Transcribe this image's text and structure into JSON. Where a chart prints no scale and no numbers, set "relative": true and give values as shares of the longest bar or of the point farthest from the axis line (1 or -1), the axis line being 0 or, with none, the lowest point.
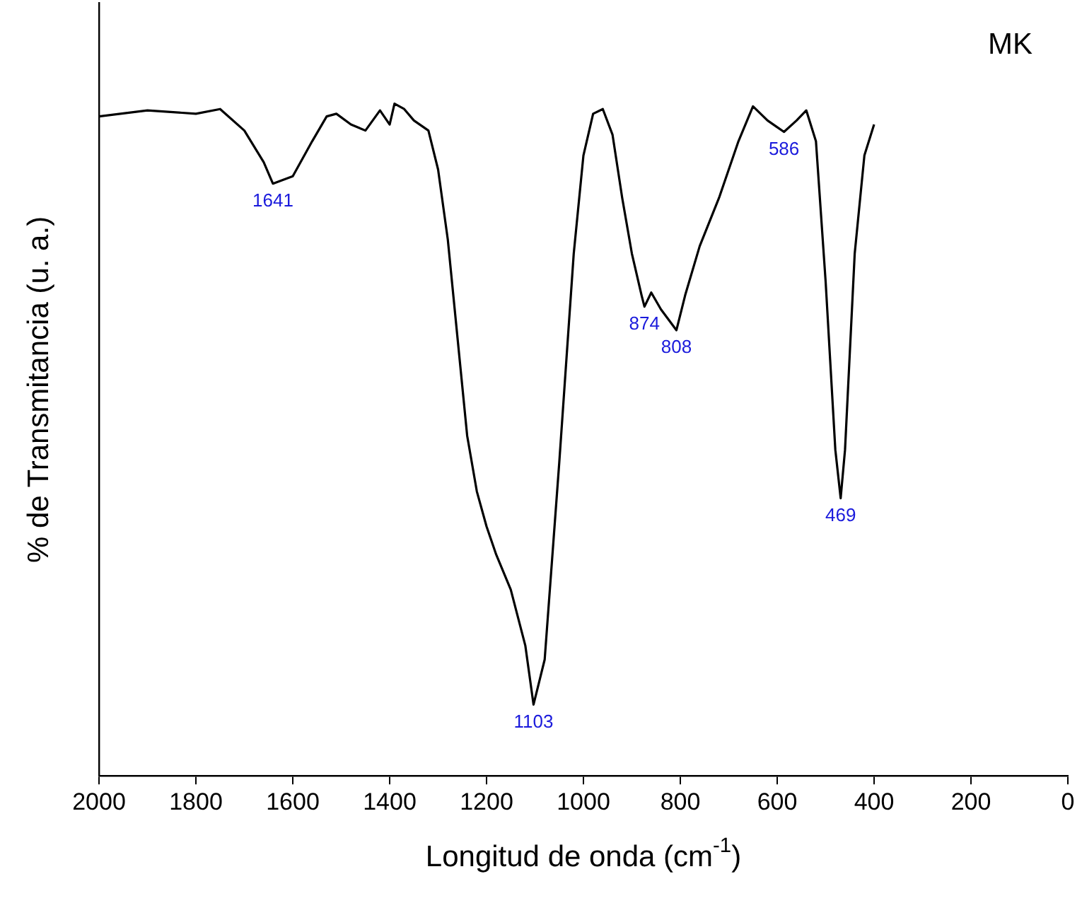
{
  "chart_data": {
    "type": "line",
    "xlabel": "Longitud de onda (cm$^{-1}$)",
    "ylabel": "% de Transmitancia (u. a.)",
    "relative": true,
    "xlim": [
      2000,
      0
    ],
    "xticks": [
      2000,
      1800,
      1600,
      1400,
      1200,
      1000,
      800,
      600,
      400,
      200,
      0
    ],
    "grid": false,
    "marker": "none",
    "legend": "top right",
    "series": [
      {
        "name": "MK",
        "color": "#000000",
        "x": [
          2000,
          1900,
          1800,
          1750,
          1700,
          1660,
          1641,
          1600,
          1560,
          1530,
          1510,
          1480,
          1450,
          1420,
          1400,
          1390,
          1370,
          1350,
          1320,
          1300,
          1280,
          1260,
          1240,
          1220,
          1200,
          1180,
          1150,
          1120,
          1103,
          1080,
          1050,
          1020,
          1000,
          980,
          960,
          940,
          920,
          900,
          880,
          874,
          860,
          840,
          808,
          790,
          760,
          720,
          680,
          650,
          620,
          600,
          586,
          560,
          540,
          520,
          500,
          480,
          469,
          460,
          440,
          420,
          400
        ],
        "values": [
          0.981,
          0.99,
          0.985,
          0.992,
          0.96,
          0.913,
          0.881,
          0.892,
          0.944,
          0.981,
          0.985,
          0.969,
          0.96,
          0.99,
          0.969,
          1,
          0.992,
          0.975,
          0.96,
          0.902,
          0.798,
          0.652,
          0.506,
          0.423,
          0.371,
          0.329,
          0.277,
          0.194,
          0.106,
          0.173,
          0.465,
          0.777,
          0.923,
          0.985,
          0.992,
          0.954,
          0.86,
          0.777,
          0.715,
          0.698,
          0.719,
          0.694,
          0.663,
          0.715,
          0.788,
          0.86,
          0.944,
          0.996,
          0.975,
          0.965,
          0.958,
          0.975,
          0.99,
          0.944,
          0.735,
          0.485,
          0.413,
          0.485,
          0.777,
          0.923,
          0.969
        ]
      }
    ],
    "annotations": [
      {
        "text": "1641",
        "x": 1641,
        "y": 0.881
      },
      {
        "text": "1103",
        "x": 1103,
        "y": 0.106
      },
      {
        "text": "874",
        "x": 874,
        "y": 0.698
      },
      {
        "text": "808",
        "x": 808,
        "y": 0.663
      },
      {
        "text": "586",
        "x": 586,
        "y": 0.958
      },
      {
        "text": "469",
        "x": 469,
        "y": 0.413
      }
    ]
  }
}
